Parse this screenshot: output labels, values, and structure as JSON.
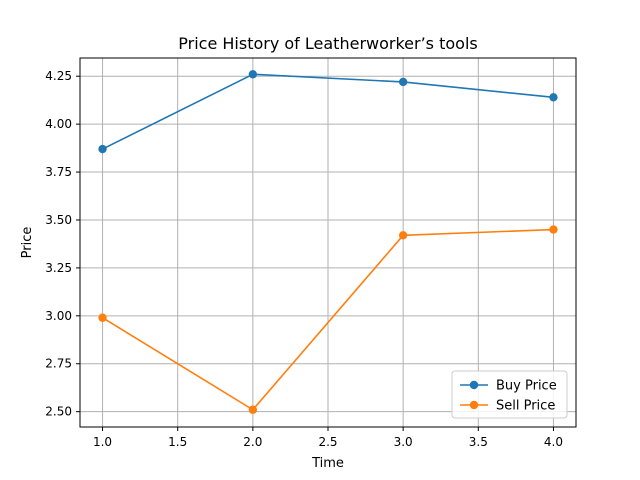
{
  "chart_data": {
    "type": "line",
    "title": "Price History of Leatherworker’s tools",
    "xlabel": "Time",
    "ylabel": "Price",
    "xlim": [
      0.85,
      4.15
    ],
    "ylim": [
      2.42,
      4.345
    ],
    "xticks": [
      1.0,
      1.5,
      2.0,
      2.5,
      3.0,
      3.5,
      4.0
    ],
    "xtick_labels": [
      "1.0",
      "1.5",
      "2.0",
      "2.5",
      "3.0",
      "3.5",
      "4.0"
    ],
    "yticks": [
      2.5,
      2.75,
      3.0,
      3.25,
      3.5,
      3.75,
      4.0,
      4.25
    ],
    "ytick_labels": [
      "2.50",
      "2.75",
      "3.00",
      "3.25",
      "3.50",
      "3.75",
      "4.00",
      "4.25"
    ],
    "grid": true,
    "legend_position": "lower-right",
    "x": [
      1,
      2,
      3,
      4
    ],
    "series": [
      {
        "name": "Buy Price",
        "color": "#1f77b4",
        "values": [
          3.87,
          4.26,
          4.22,
          4.14
        ]
      },
      {
        "name": "Sell Price",
        "color": "#ff7f0e",
        "values": [
          2.99,
          2.51,
          3.42,
          3.45
        ]
      }
    ]
  }
}
